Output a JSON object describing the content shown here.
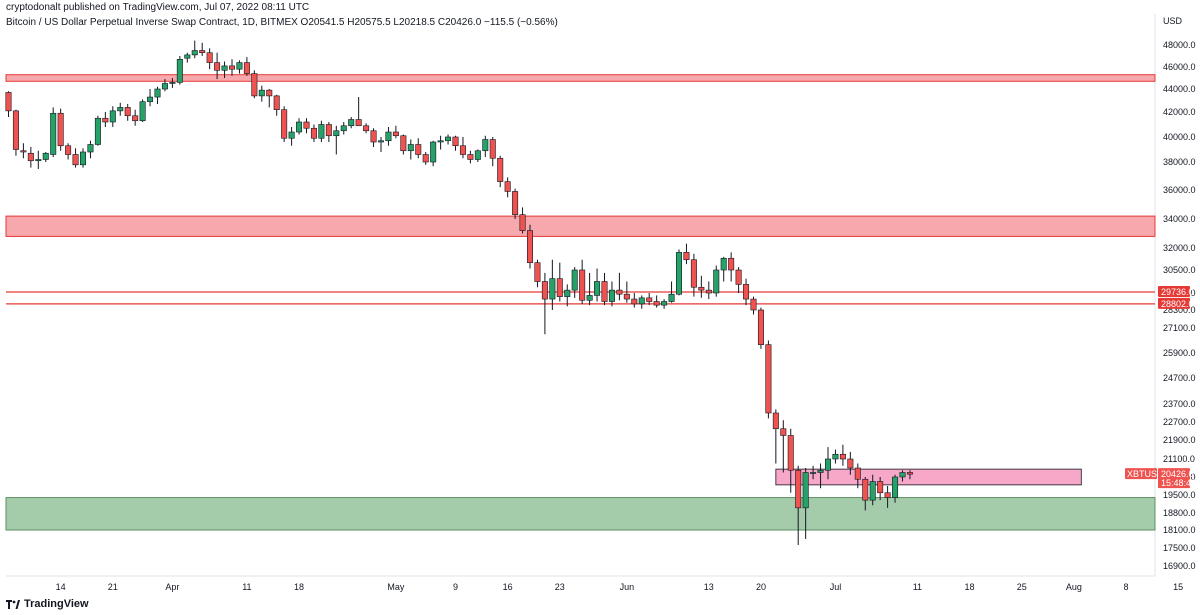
{
  "header": {
    "published": "cryptodonalt published on TradingView.com, Jul 07, 2022 08:11 UTC",
    "symbol_line": "Bitcoin / US Dollar Perpetual Inverse Swap Contract, 1D, BITMEX  O20541.5  H20575.5  L20218.5  C20426.0  −115.5 (−0.56%)"
  },
  "footer": {
    "brand": "TradingView",
    "logo_icon": "tradingview-logo-icon"
  },
  "colors": {
    "up": "#26a269",
    "down": "#ef5350",
    "wick": "#131722",
    "resistance_zone": "#f7a8ad",
    "support_zone": "#a5ccaa",
    "line": "#e53935",
    "pink_zone": "#f7a8c8"
  },
  "chart_data": {
    "type": "candlestick",
    "currency": "USD",
    "y_ticks": [
      16900,
      17500,
      18100,
      18800,
      19500,
      20300,
      21100,
      21900,
      22700,
      23700,
      24700,
      25900,
      27100,
      28300,
      29700,
      30500,
      32000,
      34000,
      36000,
      38000,
      40000,
      42000,
      44000,
      46000,
      48000
    ],
    "y_tick_labels": [
      "16900.0",
      "17500.0",
      "18100.0",
      "18800.0",
      "19500.0",
      "20300.0",
      "21100.0",
      "21900.0",
      "22700.0",
      "23700.0",
      "24700.0",
      "25900.0",
      "27100.0",
      "28300.0",
      "29700.0",
      "30500.0",
      "32000.0",
      "34000.0",
      "36000.0",
      "38000.0",
      "40000.0",
      "42000.0",
      "44000.0",
      "46000.0",
      "48000.0"
    ],
    "x_labels": [
      "14",
      "21",
      "Apr",
      "11",
      "18",
      "May",
      "9",
      "16",
      "23",
      "Jun",
      "13",
      "20",
      "Jul",
      "11",
      "18",
      "25",
      "Aug",
      "8",
      "15"
    ],
    "x_label_days": [
      7,
      14,
      22,
      32,
      39,
      52,
      60,
      67,
      74,
      83,
      94,
      101,
      111,
      122,
      129,
      136,
      143,
      150,
      157
    ],
    "horizontal_zones": [
      {
        "name": "resistance-zone-45000",
        "low": 44700,
        "high": 45300,
        "color": "#f7a8ad"
      },
      {
        "name": "resistance-zone-33500",
        "low": 32800,
        "high": 34200,
        "color": "#f7a8ad"
      },
      {
        "name": "support-zone-19000",
        "low": 18100,
        "high": 19400,
        "color": "#a5ccaa"
      }
    ],
    "horizontal_lines": [
      {
        "name": "level-29736",
        "value": 29736,
        "label": "29736.0"
      },
      {
        "name": "level-28802",
        "value": 28802,
        "label": "28802.0"
      }
    ],
    "rect_zone": {
      "name": "pink-zone-20300",
      "low": 19950,
      "high": 20650,
      "start_day": 103,
      "end_day": 144
    },
    "last_price": {
      "label": "XBTUSD",
      "value": 20426,
      "value_label": "20426.0",
      "countdown": "15:48:42"
    },
    "candles": [
      [
        43700,
        43800,
        41600,
        42100
      ],
      [
        42100,
        42200,
        38500,
        39000
      ],
      [
        38900,
        39500,
        38300,
        38800
      ],
      [
        38700,
        39200,
        37600,
        38100
      ],
      [
        38100,
        38900,
        37500,
        38200
      ],
      [
        38200,
        38800,
        38000,
        38700
      ],
      [
        38600,
        42400,
        38400,
        41900
      ],
      [
        41900,
        42300,
        38900,
        39300
      ],
      [
        39300,
        39500,
        38200,
        38600
      ],
      [
        38600,
        39100,
        37600,
        37800
      ],
      [
        37800,
        39100,
        37600,
        38800
      ],
      [
        38800,
        39700,
        38300,
        39400
      ],
      [
        39400,
        41700,
        39300,
        41500
      ],
      [
        41500,
        42000,
        40800,
        41200
      ],
      [
        41200,
        42500,
        40800,
        42100
      ],
      [
        42100,
        42800,
        41700,
        42400
      ],
      [
        42400,
        42700,
        41300,
        41700
      ],
      [
        41700,
        42200,
        40900,
        41300
      ],
      [
        41300,
        43100,
        41200,
        42900
      ],
      [
        42900,
        44000,
        42500,
        43300
      ],
      [
        43300,
        44200,
        42700,
        44000
      ],
      [
        44000,
        44900,
        43800,
        44500
      ],
      [
        44500,
        45000,
        44100,
        44600
      ],
      [
        44600,
        47000,
        44400,
        46700
      ],
      [
        46800,
        47300,
        46400,
        47100
      ],
      [
        47100,
        48400,
        46800,
        47500
      ],
      [
        47500,
        48200,
        47000,
        47300
      ],
      [
        47300,
        47700,
        45800,
        46400
      ],
      [
        46400,
        47300,
        44900,
        45700
      ],
      [
        45700,
        46500,
        45000,
        46100
      ],
      [
        46100,
        46700,
        45200,
        45800
      ],
      [
        45800,
        46600,
        45400,
        46400
      ],
      [
        46400,
        46900,
        45200,
        45400
      ],
      [
        45400,
        45700,
        43200,
        43400
      ],
      [
        43400,
        44300,
        42900,
        43900
      ],
      [
        43900,
        44000,
        42400,
        43400
      ],
      [
        43400,
        43500,
        41700,
        42200
      ],
      [
        42200,
        42500,
        39600,
        39900
      ],
      [
        39900,
        40800,
        39300,
        40400
      ],
      [
        40400,
        41500,
        40200,
        41200
      ],
      [
        41200,
        41500,
        40300,
        40700
      ],
      [
        40700,
        41000,
        39600,
        39900
      ],
      [
        39900,
        41300,
        39600,
        41000
      ],
      [
        41000,
        41200,
        39600,
        40100
      ],
      [
        40100,
        40900,
        38600,
        40500
      ],
      [
        40500,
        41200,
        40200,
        40900
      ],
      [
        40900,
        41600,
        40700,
        41400
      ],
      [
        41400,
        43300,
        40900,
        40900
      ],
      [
        40900,
        41100,
        40300,
        40500
      ],
      [
        40500,
        40700,
        39200,
        39600
      ],
      [
        39600,
        40000,
        38800,
        39700
      ],
      [
        39700,
        40800,
        39300,
        40400
      ],
      [
        40400,
        40900,
        39900,
        40100
      ],
      [
        40100,
        40200,
        38600,
        38900
      ],
      [
        38900,
        39800,
        38200,
        39400
      ],
      [
        39400,
        39900,
        38300,
        38600
      ],
      [
        38600,
        38800,
        37800,
        38000
      ],
      [
        38000,
        39700,
        37700,
        39600
      ],
      [
        39600,
        40100,
        39000,
        39700
      ],
      [
        39700,
        40200,
        39400,
        40000
      ],
      [
        40000,
        40100,
        38900,
        39300
      ],
      [
        39300,
        40000,
        38300,
        38600
      ],
      [
        38600,
        38900,
        37900,
        38200
      ],
      [
        38200,
        39000,
        38000,
        38900
      ],
      [
        38900,
        40100,
        38400,
        39800
      ],
      [
        39800,
        40000,
        37700,
        38300
      ],
      [
        38300,
        38500,
        36200,
        36600
      ],
      [
        36600,
        36900,
        35500,
        35900
      ],
      [
        35900,
        36100,
        34000,
        34300
      ],
      [
        34300,
        34800,
        33000,
        33200
      ],
      [
        33200,
        33600,
        30600,
        31000
      ],
      [
        31000,
        31200,
        29900,
        30100
      ],
      [
        30100,
        30400,
        26800,
        29200
      ],
      [
        29200,
        31200,
        28300,
        30200
      ],
      [
        30200,
        31000,
        29000,
        29400
      ],
      [
        29400,
        30000,
        28600,
        29800
      ],
      [
        29800,
        30700,
        29300,
        30500
      ],
      [
        30500,
        31200,
        28800,
        29100
      ],
      [
        29100,
        30400,
        28700,
        29500
      ],
      [
        29500,
        30600,
        29000,
        30100
      ],
      [
        30100,
        30400,
        28700,
        29000
      ],
      [
        29000,
        30100,
        28600,
        29800
      ],
      [
        29800,
        30400,
        29100,
        29600
      ],
      [
        29600,
        30100,
        28900,
        29200
      ],
      [
        29200,
        29700,
        28500,
        28800
      ],
      [
        28800,
        29500,
        28400,
        29300
      ],
      [
        29300,
        29700,
        28700,
        29000
      ],
      [
        29000,
        29500,
        28500,
        28700
      ],
      [
        28700,
        29200,
        28400,
        29000
      ],
      [
        29000,
        30100,
        28900,
        29600
      ],
      [
        29600,
        31900,
        29500,
        31700
      ],
      [
        31700,
        32300,
        30900,
        31200
      ],
      [
        31200,
        31600,
        29400,
        29900
      ],
      [
        29900,
        30300,
        29300,
        29800
      ],
      [
        29800,
        30100,
        29200,
        29700
      ],
      [
        29700,
        30800,
        29400,
        30500
      ],
      [
        30500,
        31400,
        30100,
        31300
      ],
      [
        31300,
        31700,
        30100,
        30500
      ],
      [
        30500,
        30700,
        29700,
        30000
      ],
      [
        30000,
        30200,
        28700,
        29200
      ],
      [
        29200,
        29400,
        28000,
        28300
      ],
      [
        28300,
        28500,
        26100,
        26300
      ],
      [
        26300,
        26500,
        22900,
        23200
      ],
      [
        23200,
        23400,
        20900,
        22400
      ],
      [
        22400,
        22800,
        20500,
        22100
      ],
      [
        22100,
        22400,
        19600,
        20600
      ],
      [
        20600,
        20800,
        17600,
        19000
      ],
      [
        19000,
        20700,
        17800,
        20500
      ],
      [
        20500,
        20800,
        20200,
        20500
      ],
      [
        20500,
        20900,
        19800,
        20600
      ],
      [
        20600,
        21600,
        20200,
        21100
      ],
      [
        21100,
        21500,
        20900,
        21300
      ],
      [
        21300,
        21700,
        20800,
        21100
      ],
      [
        21100,
        21400,
        20400,
        20700
      ],
      [
        20700,
        20900,
        19800,
        20200
      ],
      [
        20200,
        20300,
        18900,
        19300
      ],
      [
        19300,
        20400,
        19100,
        20100
      ],
      [
        20100,
        20300,
        19300,
        19600
      ],
      [
        19600,
        19900,
        19000,
        19400
      ],
      [
        19400,
        20400,
        19200,
        20300
      ],
      [
        20300,
        20600,
        20100,
        20500
      ],
      [
        20500,
        20600,
        20200,
        20426
      ]
    ]
  }
}
